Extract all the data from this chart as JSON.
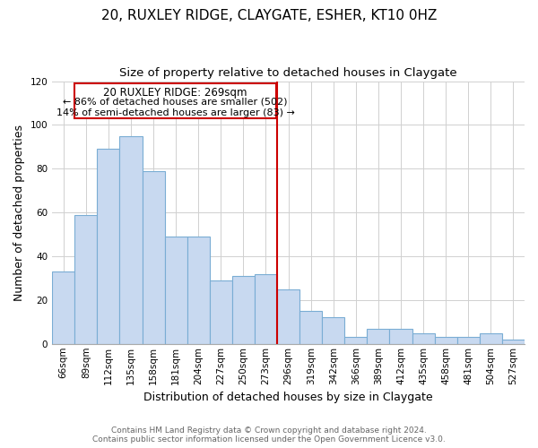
{
  "title": "20, RUXLEY RIDGE, CLAYGATE, ESHER, KT10 0HZ",
  "subtitle": "Size of property relative to detached houses in Claygate",
  "xlabel": "Distribution of detached houses by size in Claygate",
  "ylabel": "Number of detached properties",
  "categories": [
    "66sqm",
    "89sqm",
    "112sqm",
    "135sqm",
    "158sqm",
    "181sqm",
    "204sqm",
    "227sqm",
    "250sqm",
    "273sqm",
    "296sqm",
    "319sqm",
    "342sqm",
    "366sqm",
    "389sqm",
    "412sqm",
    "435sqm",
    "458sqm",
    "481sqm",
    "504sqm",
    "527sqm"
  ],
  "values": [
    33,
    59,
    89,
    95,
    79,
    49,
    49,
    29,
    31,
    32,
    25,
    15,
    12,
    3,
    7,
    7,
    5,
    3,
    3,
    5,
    2
  ],
  "bar_color": "#c8d9f0",
  "bar_edge_color": "#7aadd4",
  "marker_index": 9,
  "marker_label": "20 RUXLEY RIDGE: 269sqm",
  "annotation_line1": "← 86% of detached houses are smaller (502)",
  "annotation_line2": "14% of semi-detached houses are larger (83) →",
  "marker_color": "#cc0000",
  "ylim": [
    0,
    120
  ],
  "yticks": [
    0,
    20,
    40,
    60,
    80,
    100,
    120
  ],
  "footer_line1": "Contains HM Land Registry data © Crown copyright and database right 2024.",
  "footer_line2": "Contains public sector information licensed under the Open Government Licence v3.0.",
  "background_color": "#ffffff",
  "grid_color": "#d0d0d0",
  "title_fontsize": 11,
  "subtitle_fontsize": 9.5,
  "axis_label_fontsize": 9,
  "tick_fontsize": 7.5,
  "footer_fontsize": 6.5,
  "annotation_fontsize": 8.5
}
